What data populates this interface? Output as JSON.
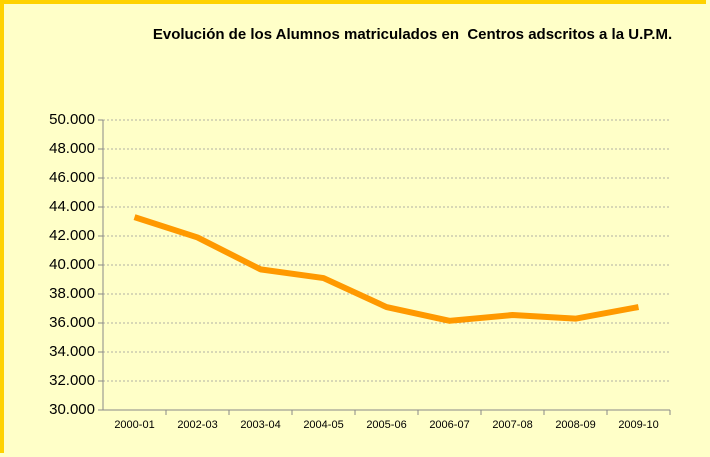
{
  "chart_data": {
    "type": "line",
    "title": "Evolución de los Alumnos matriculados en  Centros adscritos a la U.P.M.",
    "categories": [
      "2000-01",
      "2002-03",
      "2003-04",
      "2004-05",
      "2005-06",
      "2006-07",
      "2007-08",
      "2008-09",
      "2009-10"
    ],
    "series": [
      {
        "name": "Alumnos matriculados",
        "color": "#ff9900",
        "values": [
          43300,
          41900,
          39700,
          39100,
          37100,
          36150,
          36550,
          36300,
          37100
        ]
      }
    ],
    "ylim": [
      30000,
      50000
    ],
    "yticks": [
      {
        "value": 30000,
        "label": "30.000"
      },
      {
        "value": 32000,
        "label": "32.000"
      },
      {
        "value": 34000,
        "label": "34.000"
      },
      {
        "value": 36000,
        "label": "36.000"
      },
      {
        "value": 38000,
        "label": "38.000"
      },
      {
        "value": 40000,
        "label": "40.000"
      },
      {
        "value": 42000,
        "label": "42.000"
      },
      {
        "value": 44000,
        "label": "44.000"
      },
      {
        "value": 46000,
        "label": "46.000"
      },
      {
        "value": 48000,
        "label": "48.000"
      },
      {
        "value": 50000,
        "label": "50.000"
      }
    ],
    "grid": true
  }
}
